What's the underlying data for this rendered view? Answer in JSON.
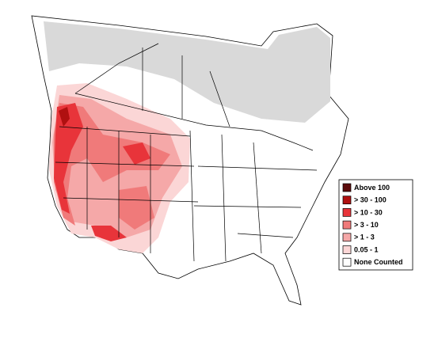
{
  "legend": {
    "items": [
      {
        "label": "Above 100",
        "color": "#5c0b0b"
      },
      {
        "label": "> 30 - 100",
        "color": "#b01010"
      },
      {
        "label": "> 10 - 30",
        "color": "#e8343a"
      },
      {
        "label": "> 3 - 10",
        "color": "#f07a7a"
      },
      {
        "label": "> 1 - 3",
        "color": "#f5a8a8"
      },
      {
        "label": "0.05 - 1",
        "color": "#fbd6d6"
      },
      {
        "label": "None Counted",
        "color": "#ffffff"
      }
    ]
  }
}
